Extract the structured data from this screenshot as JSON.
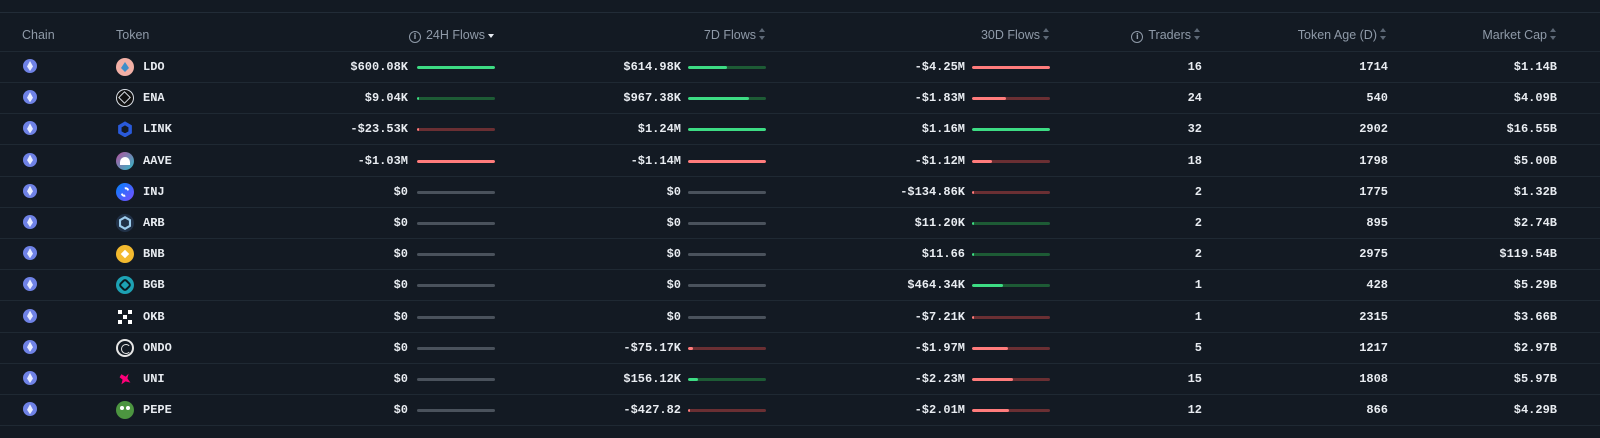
{
  "columns": {
    "chain": "Chain",
    "token": "Token",
    "flows_24h": "24H Flows",
    "flows_7d": "7D Flows",
    "flows_30d": "30D Flows",
    "traders": "Traders",
    "token_age": "Token Age (D)",
    "market_cap": "Market Cap"
  },
  "colors": {
    "positive": "#3ddc84",
    "positive_track": "#1d5b35",
    "negative": "#ff7c7c",
    "negative_track": "#6a2f33",
    "neutral_track": "#4a525c"
  },
  "rows": [
    {
      "token": "LDO",
      "icon": "lido-icon",
      "f24": "$600.08K",
      "f24_bar": {
        "dir": "pos",
        "pct": 1.0
      },
      "f7": "$614.98K",
      "f7_bar": {
        "dir": "pos",
        "pct": 0.5
      },
      "f30": "-$4.25M",
      "f30_bar": {
        "dir": "neg",
        "pct": 1.0
      },
      "traders": "16",
      "age": "1714",
      "mcap": "$1.14B"
    },
    {
      "token": "ENA",
      "icon": "ethena-icon",
      "f24": "$9.04K",
      "f24_bar": {
        "dir": "pos",
        "pct": 0.02
      },
      "f7": "$967.38K",
      "f7_bar": {
        "dir": "pos",
        "pct": 0.78
      },
      "f30": "-$1.83M",
      "f30_bar": {
        "dir": "neg",
        "pct": 0.43
      },
      "traders": "24",
      "age": "540",
      "mcap": "$4.09B"
    },
    {
      "token": "LINK",
      "icon": "chainlink-icon",
      "f24": "-$23.53K",
      "f24_bar": {
        "dir": "neg",
        "pct": 0.02
      },
      "f7": "$1.24M",
      "f7_bar": {
        "dir": "pos",
        "pct": 1.0
      },
      "f30": "$1.16M",
      "f30_bar": {
        "dir": "pos",
        "pct": 1.0
      },
      "traders": "32",
      "age": "2902",
      "mcap": "$16.55B"
    },
    {
      "token": "AAVE",
      "icon": "aave-icon",
      "f24": "-$1.03M",
      "f24_bar": {
        "dir": "neg",
        "pct": 1.0
      },
      "f7": "-$1.14M",
      "f7_bar": {
        "dir": "neg",
        "pct": 1.0
      },
      "f30": "-$1.12M",
      "f30_bar": {
        "dir": "neg",
        "pct": 0.26
      },
      "traders": "18",
      "age": "1798",
      "mcap": "$5.00B"
    },
    {
      "token": "INJ",
      "icon": "injective-icon",
      "f24": "$0",
      "f24_bar": {
        "dir": "zero",
        "pct": 0
      },
      "f7": "$0",
      "f7_bar": {
        "dir": "zero",
        "pct": 0
      },
      "f30": "-$134.86K",
      "f30_bar": {
        "dir": "neg",
        "pct": 0.03
      },
      "traders": "2",
      "age": "1775",
      "mcap": "$1.32B"
    },
    {
      "token": "ARB",
      "icon": "arbitrum-icon",
      "f24": "$0",
      "f24_bar": {
        "dir": "zero",
        "pct": 0
      },
      "f7": "$0",
      "f7_bar": {
        "dir": "zero",
        "pct": 0
      },
      "f30": "$11.20K",
      "f30_bar": {
        "dir": "pos",
        "pct": 0.01
      },
      "traders": "2",
      "age": "895",
      "mcap": "$2.74B"
    },
    {
      "token": "BNB",
      "icon": "bnb-icon",
      "f24": "$0",
      "f24_bar": {
        "dir": "zero",
        "pct": 0
      },
      "f7": "$0",
      "f7_bar": {
        "dir": "zero",
        "pct": 0
      },
      "f30": "$11.66",
      "f30_bar": {
        "dir": "pos",
        "pct": 0.0
      },
      "traders": "2",
      "age": "2975",
      "mcap": "$119.54B"
    },
    {
      "token": "BGB",
      "icon": "bitget-icon",
      "f24": "$0",
      "f24_bar": {
        "dir": "zero",
        "pct": 0
      },
      "f7": "$0",
      "f7_bar": {
        "dir": "zero",
        "pct": 0
      },
      "f30": "$464.34K",
      "f30_bar": {
        "dir": "pos",
        "pct": 0.4
      },
      "traders": "1",
      "age": "428",
      "mcap": "$5.29B"
    },
    {
      "token": "OKB",
      "icon": "okb-icon",
      "f24": "$0",
      "f24_bar": {
        "dir": "zero",
        "pct": 0
      },
      "f7": "$0",
      "f7_bar": {
        "dir": "zero",
        "pct": 0
      },
      "f30": "-$7.21K",
      "f30_bar": {
        "dir": "neg",
        "pct": 0.0
      },
      "traders": "1",
      "age": "2315",
      "mcap": "$3.66B"
    },
    {
      "token": "ONDO",
      "icon": "ondo-icon",
      "f24": "$0",
      "f24_bar": {
        "dir": "zero",
        "pct": 0
      },
      "f7": "-$75.17K",
      "f7_bar": {
        "dir": "neg",
        "pct": 0.07
      },
      "f30": "-$1.97M",
      "f30_bar": {
        "dir": "neg",
        "pct": 0.46
      },
      "traders": "5",
      "age": "1217",
      "mcap": "$2.97B"
    },
    {
      "token": "UNI",
      "icon": "uniswap-icon",
      "f24": "$0",
      "f24_bar": {
        "dir": "zero",
        "pct": 0
      },
      "f7": "$156.12K",
      "f7_bar": {
        "dir": "pos",
        "pct": 0.13
      },
      "f30": "-$2.23M",
      "f30_bar": {
        "dir": "neg",
        "pct": 0.52
      },
      "traders": "15",
      "age": "1808",
      "mcap": "$5.97B"
    },
    {
      "token": "PEPE",
      "icon": "pepe-icon",
      "f24": "$0",
      "f24_bar": {
        "dir": "zero",
        "pct": 0
      },
      "f7": "-$427.82",
      "f7_bar": {
        "dir": "neg",
        "pct": 0.0
      },
      "f30": "-$2.01M",
      "f30_bar": {
        "dir": "neg",
        "pct": 0.47
      },
      "traders": "12",
      "age": "866",
      "mcap": "$4.29B"
    }
  ]
}
